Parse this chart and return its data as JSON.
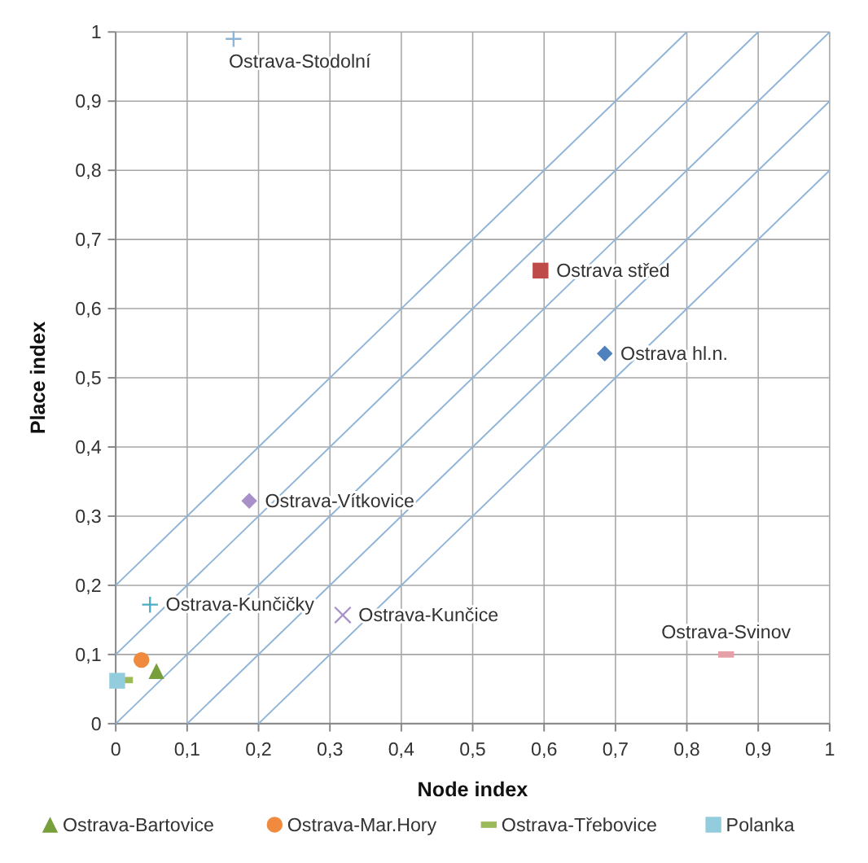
{
  "chart_data": {
    "type": "scatter",
    "xlabel": "Node index",
    "ylabel": "Place index",
    "xlim": [
      0,
      1
    ],
    "ylim": [
      0,
      1
    ],
    "xticks": [
      0,
      {
        "value": 0.1,
        "label": "0,1"
      },
      {
        "value": 0.2,
        "label": "0,2"
      },
      {
        "value": 0.3,
        "label": "0,3"
      },
      {
        "value": 0.4,
        "label": "0,4"
      },
      {
        "value": 0.5,
        "label": "0,5"
      },
      {
        "value": 0.6,
        "label": "0,6"
      },
      {
        "value": 0.7,
        "label": "0,7"
      },
      {
        "value": 0.8,
        "label": "0,8"
      },
      {
        "value": 0.9,
        "label": "0,9"
      },
      1
    ],
    "yticks": [
      0,
      {
        "value": 0.1,
        "label": "0,1"
      },
      {
        "value": 0.2,
        "label": "0,2"
      },
      {
        "value": 0.3,
        "label": "0,3"
      },
      {
        "value": 0.4,
        "label": "0,4"
      },
      {
        "value": 0.5,
        "label": "0,5"
      },
      {
        "value": 0.6,
        "label": "0,6"
      },
      {
        "value": 0.7,
        "label": "0,7"
      },
      {
        "value": 0.8,
        "label": "0,8"
      },
      {
        "value": 0.9,
        "label": "0,9"
      },
      1
    ],
    "grid": true,
    "legend": "bottom",
    "series": [
      {
        "type": "line",
        "marker": "none",
        "color": "#8eb4d8",
        "x": [
          0,
          0.8
        ],
        "values": [
          0.2,
          1
        ]
      },
      {
        "type": "line",
        "marker": "none",
        "color": "#8eb4d8",
        "x": [
          0,
          0.9
        ],
        "values": [
          0.1,
          1
        ]
      },
      {
        "type": "line",
        "marker": "none",
        "color": "#8eb4d8",
        "x": [
          0,
          1
        ],
        "values": [
          0,
          1
        ]
      },
      {
        "type": "line",
        "marker": "none",
        "color": "#8eb4d8",
        "x": [
          0.1,
          1
        ],
        "values": [
          0,
          0.9
        ]
      },
      {
        "type": "line",
        "marker": "none",
        "color": "#8eb4d8",
        "x": [
          0.2,
          1
        ],
        "values": [
          0,
          0.8
        ]
      },
      {
        "marker": "cross",
        "color": "#8eb4d8",
        "x": [
          0.165
        ],
        "values": [
          0.99
        ]
      },
      {
        "marker": "square",
        "color": "#be4b48",
        "x": [
          0.595
        ],
        "values": [
          0.655
        ]
      },
      {
        "marker": "diamond",
        "color": "#4f81bd",
        "x": [
          0.685
        ],
        "values": [
          0.535
        ]
      },
      {
        "marker": "diamond",
        "color": "#a890c8",
        "x": [
          0.187
        ],
        "values": [
          0.322
        ]
      },
      {
        "marker": "cross",
        "color": "#4bacc6",
        "x": [
          0.048
        ],
        "values": [
          0.172
        ]
      },
      {
        "marker": "x",
        "color": "#a890c8",
        "x": [
          0.318
        ],
        "values": [
          0.157
        ]
      },
      {
        "color": "#e6a0a8",
        "x": [
          0.855
        ],
        "values": [
          0.1
        ]
      },
      {
        "name": "Ostrava-Bartovice",
        "marker": "triangle",
        "color": "#77a03d",
        "x": [
          0.057
        ],
        "values": [
          0.076
        ]
      },
      {
        "name": "Ostrava-Mar.Hory",
        "marker": "circle",
        "color": "#f08a3e",
        "x": [
          0.036
        ],
        "values": [
          0.092
        ]
      },
      {
        "name": "Ostrava-Třebovice",
        "color": "#9bbb59",
        "x": [
          0.013
        ],
        "values": [
          0.063
        ]
      },
      {
        "name": "Polanka",
        "marker": "square",
        "color": "#93cddd",
        "x": [
          0.002
        ],
        "values": [
          0.062
        ]
      }
    ],
    "annotations": [
      {
        "text": "Ostrava-Stodolní",
        "x": 0.165,
        "y": 0.99
      },
      {
        "text": "Ostrava střed",
        "x": 0.595,
        "y": 0.655
      },
      {
        "text": "Ostrava hl.n.",
        "x": 0.685,
        "y": 0.535
      },
      {
        "text": "Ostrava-Vítkovice",
        "x": 0.187,
        "y": 0.322
      },
      {
        "text": "Ostrava-Kunčičky",
        "x": 0.048,
        "y": 0.172
      },
      {
        "text": "Ostrava-Kunčice",
        "x": 0.318,
        "y": 0.157
      },
      {
        "text": "Ostrava-Svinov",
        "x": 0.855,
        "y": 0.1
      }
    ]
  }
}
